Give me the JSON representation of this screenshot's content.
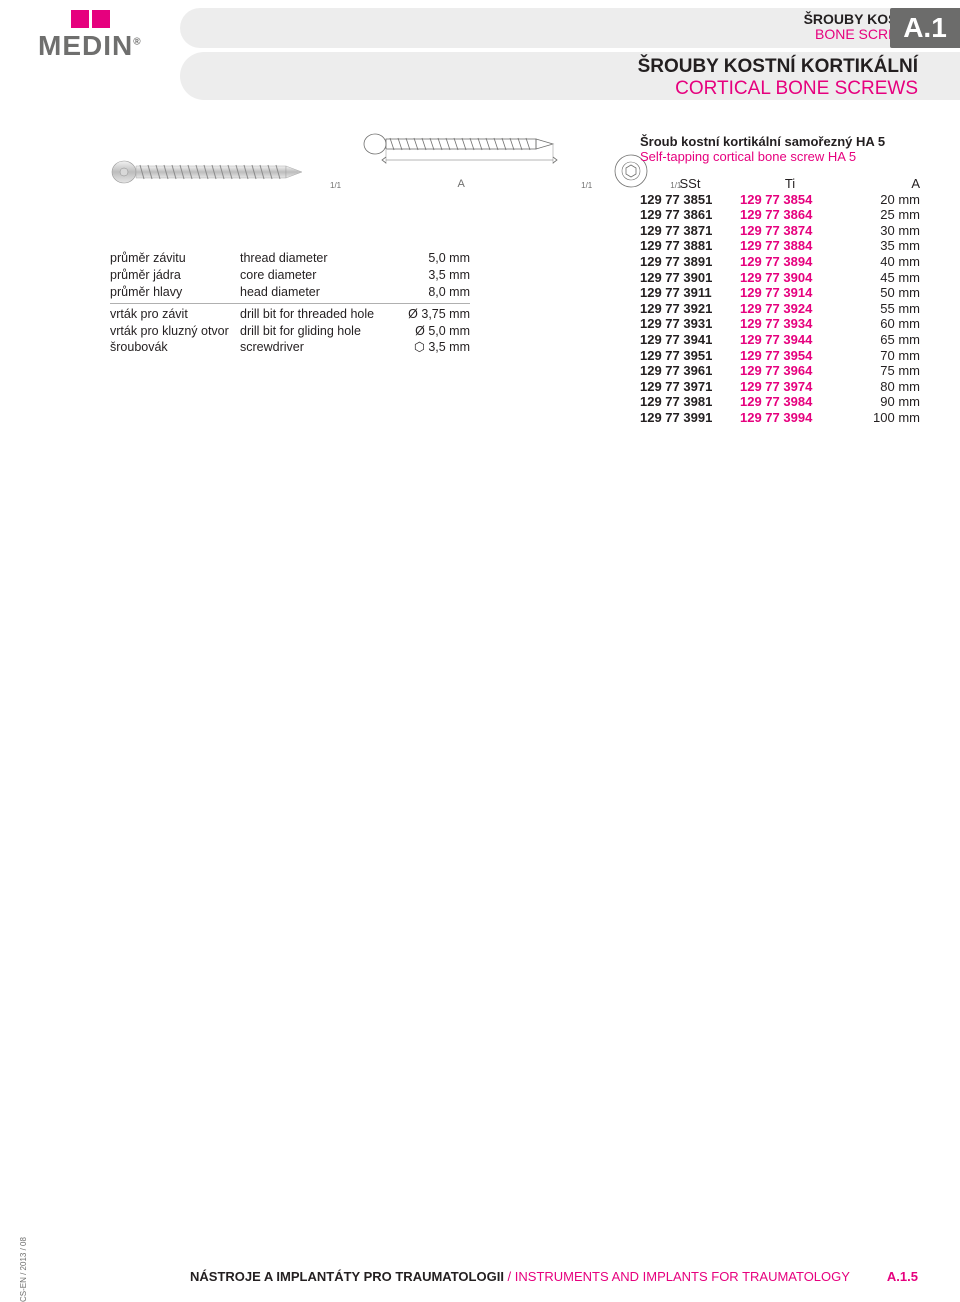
{
  "colors": {
    "accent": "#e6007e",
    "gray_bg": "#ededed",
    "gray_text": "#6f6f6e",
    "dark_bar": "#6c6c6b",
    "text": "#231f20"
  },
  "logo": {
    "name": "MEDIN",
    "reg": "®"
  },
  "header": {
    "tag_cz": "ŠROUBY KOSTNÍ",
    "tag_en": "BONE SCREWS",
    "code": "A.1",
    "title_cz": "ŠROUBY KOSTNÍ KORTIKÁLNÍ",
    "title_en": "CORTICAL BONE SCREWS"
  },
  "diagram": {
    "scale_label": "1/1",
    "dim_label": "A"
  },
  "specs": {
    "rows1": [
      {
        "cz": "průměr závitu",
        "en": "thread diameter",
        "val": "5,0 mm"
      },
      {
        "cz": "průměr jádra",
        "en": "core diameter",
        "val": "3,5 mm"
      },
      {
        "cz": "průměr hlavy",
        "en": "head diameter",
        "val": "8,0 mm"
      }
    ],
    "rows2": [
      {
        "cz": "vrták pro závit",
        "en": "drill bit for threaded hole",
        "val": "Ø 3,75 mm"
      },
      {
        "cz": "vrták pro kluzný otvor",
        "en": "drill bit for gliding hole",
        "val": "Ø 5,0 mm"
      },
      {
        "cz": "šroubovák",
        "en": "screwdriver",
        "val": "⬡ 3,5 mm"
      }
    ]
  },
  "product": {
    "title_cz": "Šroub kostní kortikální samořezný HA 5",
    "title_en": "Self-tapping cortical bone screw HA 5",
    "cols": {
      "sst": "SSt",
      "ti": "Ti",
      "a": "A"
    },
    "rows": [
      {
        "sst": "129 77 3851",
        "ti": "129 77 3854",
        "a": "20 mm"
      },
      {
        "sst": "129 77 3861",
        "ti": "129 77 3864",
        "a": "25 mm"
      },
      {
        "sst": "129 77 3871",
        "ti": "129 77 3874",
        "a": "30 mm"
      },
      {
        "sst": "129 77 3881",
        "ti": "129 77 3884",
        "a": "35 mm"
      },
      {
        "sst": "129 77 3891",
        "ti": "129 77 3894",
        "a": "40 mm"
      },
      {
        "sst": "129 77 3901",
        "ti": "129 77 3904",
        "a": "45 mm"
      },
      {
        "sst": "129 77 3911",
        "ti": "129 77 3914",
        "a": "50 mm"
      },
      {
        "sst": "129 77 3921",
        "ti": "129 77 3924",
        "a": "55 mm"
      },
      {
        "sst": "129 77 3931",
        "ti": "129 77 3934",
        "a": "60 mm"
      },
      {
        "sst": "129 77 3941",
        "ti": "129 77 3944",
        "a": "65 mm"
      },
      {
        "sst": "129 77 3951",
        "ti": "129 77 3954",
        "a": "70 mm"
      },
      {
        "sst": "129 77 3961",
        "ti": "129 77 3964",
        "a": "75 mm"
      },
      {
        "sst": "129 77 3971",
        "ti": "129 77 3974",
        "a": "80 mm"
      },
      {
        "sst": "129 77 3981",
        "ti": "129 77 3984",
        "a": "90 mm"
      },
      {
        "sst": "129 77 3991",
        "ti": "129 77 3994",
        "a": "100 mm"
      }
    ]
  },
  "footer": {
    "doc_code": "CS-EN / 2013 / 08",
    "cz": "NÁSTROJE A IMPLANTÁTY PRO TRAUMATOLOGII",
    "sep": " / ",
    "en": "INSTRUMENTS AND IMPLANTS FOR TRAUMATOLOGY",
    "page": "A.1.5"
  }
}
